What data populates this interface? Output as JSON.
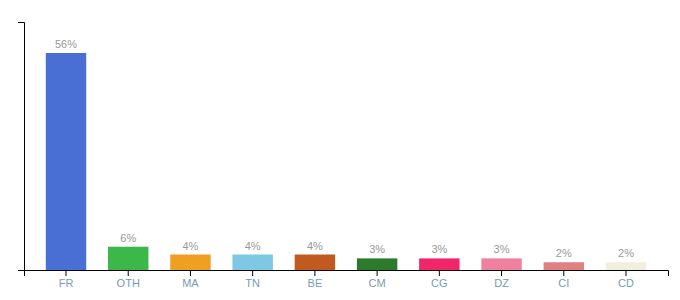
{
  "chart_data": {
    "type": "bar",
    "categories": [
      "FR",
      "OTH",
      "MA",
      "TN",
      "BE",
      "CM",
      "CG",
      "DZ",
      "CI",
      "CD"
    ],
    "values": [
      56,
      6,
      4,
      4,
      4,
      3,
      3,
      3,
      2,
      2
    ],
    "value_labels": [
      "56%",
      "6%",
      "4%",
      "4%",
      "4%",
      "3%",
      "3%",
      "3%",
      "2%",
      "2%"
    ],
    "colors": [
      "#4a6fd4",
      "#3cb84a",
      "#f0a020",
      "#7ec8e3",
      "#c05a20",
      "#2d7a2d",
      "#f0256a",
      "#f080a0",
      "#e08080",
      "#f0eedd"
    ],
    "ylim": [
      0,
      64
    ],
    "data_labels": true,
    "tick_labels": "x"
  }
}
